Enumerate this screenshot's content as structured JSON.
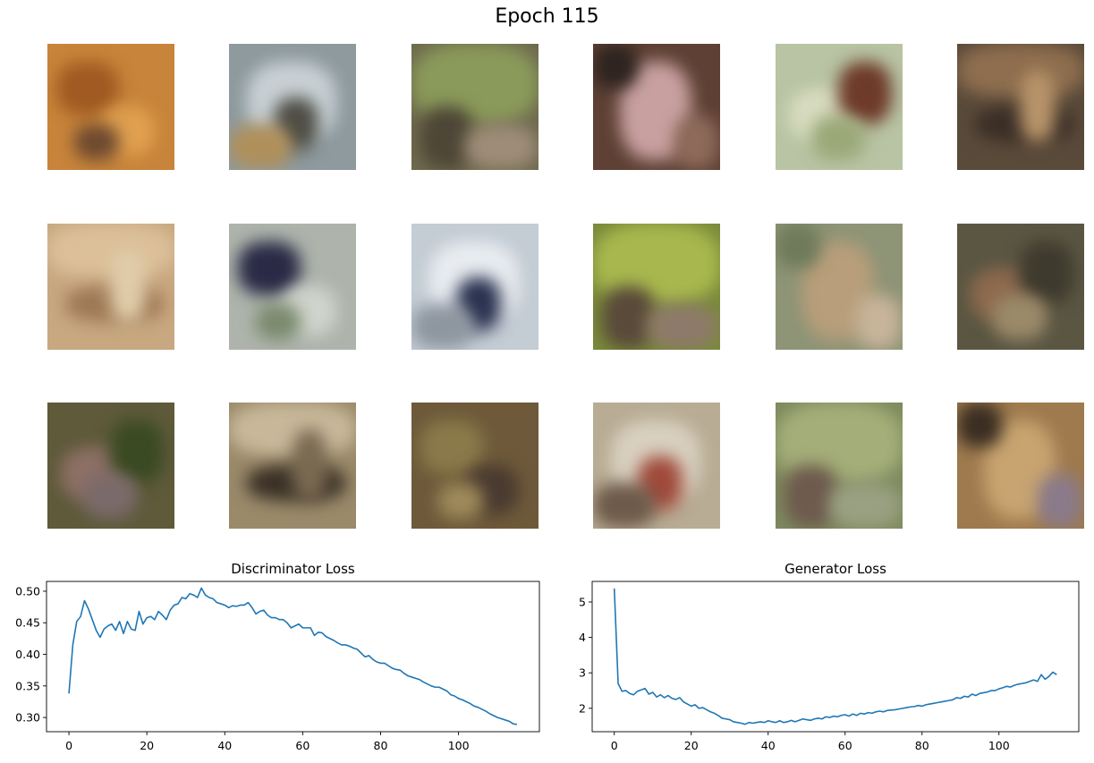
{
  "figure": {
    "title": "Epoch 115"
  },
  "image_grid": {
    "rows": 3,
    "cols": 6,
    "tiles": [
      {
        "base": "#c8843a",
        "blobs": [
          "#a05a22",
          "#e0a050",
          "#6e4a30"
        ]
      },
      {
        "base": "#8e9a9e",
        "blobs": [
          "#c8d0d4",
          "#4e4e46",
          "#b0905a"
        ]
      },
      {
        "base": "#6e6a4e",
        "blobs": [
          "#8a9a5a",
          "#4e4636",
          "#9e8c78"
        ]
      },
      {
        "base": "#5e4034",
        "blobs": [
          "#c8a0a0",
          "#2e2420",
          "#8e6a5a"
        ]
      },
      {
        "base": "#b8c4a4",
        "blobs": [
          "#d8dcc0",
          "#6e3a2a",
          "#9aa878"
        ]
      },
      {
        "base": "#5a4a3a",
        "blobs": [
          "#8e6e4e",
          "#3a2e26",
          "#b8946a"
        ]
      },
      {
        "base": "#c8a880",
        "blobs": [
          "#dcc09a",
          "#9e7856",
          "#e0ccaa"
        ]
      },
      {
        "base": "#aeb4ac",
        "blobs": [
          "#2a2a46",
          "#d0d4cc",
          "#7a8a6e"
        ]
      },
      {
        "base": "#c4ccd4",
        "blobs": [
          "#e8ecf0",
          "#2a3250",
          "#8e96a0"
        ]
      },
      {
        "base": "#7a8a3a",
        "blobs": [
          "#a8b84e",
          "#5a4a3a",
          "#8e7a6a"
        ]
      },
      {
        "base": "#8e9476",
        "blobs": [
          "#b89e7a",
          "#6e7a5a",
          "#c8b49a"
        ]
      },
      {
        "base": "#5a5642",
        "blobs": [
          "#8e6a4e",
          "#3e3a2e",
          "#9a8a6a"
        ]
      },
      {
        "base": "#5e5a3a",
        "blobs": [
          "#8e7066",
          "#3a4a22",
          "#7a6a6a"
        ]
      },
      {
        "base": "#9a8a6a",
        "blobs": [
          "#c8b89a",
          "#3a3026",
          "#7a6a52"
        ]
      },
      {
        "base": "#6e5a3a",
        "blobs": [
          "#8a7a4a",
          "#4a3a30",
          "#9e8a5a"
        ]
      },
      {
        "base": "#b8ac94",
        "blobs": [
          "#d8d0c0",
          "#a04a3a",
          "#6e5a4a"
        ]
      },
      {
        "base": "#7e8a5e",
        "blobs": [
          "#a4ae78",
          "#6e5a4e",
          "#9aa082"
        ]
      },
      {
        "base": "#9e7a4e",
        "blobs": [
          "#c8a470",
          "#3a2e22",
          "#8a7a8a"
        ]
      }
    ]
  },
  "style": {
    "line_color": "#1f77b4"
  },
  "chart_data": [
    {
      "type": "line",
      "title": "Discriminator Loss",
      "xlabel": "",
      "ylabel": "",
      "xlim": [
        -5.75,
        120.75
      ],
      "ylim": [
        0.2775,
        0.5155
      ],
      "xticks": [
        0,
        20,
        40,
        60,
        80,
        100
      ],
      "xtick_labels": [
        "0",
        "20",
        "40",
        "60",
        "80",
        "100"
      ],
      "yticks": [
        0.3,
        0.35,
        0.4,
        0.45,
        0.5
      ],
      "ytick_labels": [
        "0.30",
        "0.35",
        "0.40",
        "0.45",
        "0.50"
      ],
      "grid": false,
      "series": [
        {
          "values": [
            0.338,
            0.415,
            0.452,
            0.46,
            0.485,
            0.472,
            0.455,
            0.438,
            0.427,
            0.44,
            0.445,
            0.448,
            0.438,
            0.452,
            0.433,
            0.452,
            0.44,
            0.438,
            0.468,
            0.448,
            0.458,
            0.46,
            0.455,
            0.468,
            0.462,
            0.455,
            0.47,
            0.478,
            0.48,
            0.49,
            0.488,
            0.496,
            0.494,
            0.49,
            0.505,
            0.494,
            0.49,
            0.488,
            0.482,
            0.48,
            0.478,
            0.474,
            0.477,
            0.476,
            0.478,
            0.478,
            0.482,
            0.474,
            0.464,
            0.468,
            0.47,
            0.462,
            0.458,
            0.458,
            0.455,
            0.455,
            0.45,
            0.442,
            0.445,
            0.448,
            0.442,
            0.442,
            0.442,
            0.43,
            0.435,
            0.434,
            0.428,
            0.425,
            0.422,
            0.418,
            0.415,
            0.415,
            0.413,
            0.41,
            0.408,
            0.402,
            0.396,
            0.398,
            0.392,
            0.388,
            0.386,
            0.386,
            0.382,
            0.378,
            0.376,
            0.375,
            0.37,
            0.366,
            0.364,
            0.362,
            0.36,
            0.356,
            0.353,
            0.35,
            0.348,
            0.348,
            0.345,
            0.342,
            0.336,
            0.334,
            0.33,
            0.328,
            0.325,
            0.322,
            0.318,
            0.316,
            0.313,
            0.31,
            0.306,
            0.303,
            0.3,
            0.298,
            0.296,
            0.294,
            0.29,
            0.289
          ]
        }
      ]
    },
    {
      "type": "line",
      "title": "Generator Loss",
      "xlabel": "",
      "ylabel": "",
      "xlim": [
        -5.75,
        120.75
      ],
      "ylim": [
        1.34,
        5.58
      ],
      "xticks": [
        0,
        20,
        40,
        60,
        80,
        100
      ],
      "xtick_labels": [
        "0",
        "20",
        "40",
        "60",
        "80",
        "100"
      ],
      "yticks": [
        2,
        3,
        4,
        5
      ],
      "ytick_labels": [
        "2",
        "3",
        "4",
        "5"
      ],
      "grid": false,
      "series": [
        {
          "values": [
            5.38,
            2.7,
            2.48,
            2.5,
            2.42,
            2.38,
            2.48,
            2.52,
            2.56,
            2.4,
            2.45,
            2.32,
            2.38,
            2.3,
            2.36,
            2.28,
            2.25,
            2.3,
            2.18,
            2.12,
            2.06,
            2.1,
            2.0,
            2.02,
            1.96,
            1.9,
            1.86,
            1.8,
            1.72,
            1.7,
            1.68,
            1.62,
            1.6,
            1.58,
            1.55,
            1.6,
            1.58,
            1.6,
            1.62,
            1.6,
            1.65,
            1.62,
            1.6,
            1.65,
            1.6,
            1.62,
            1.66,
            1.62,
            1.66,
            1.7,
            1.68,
            1.66,
            1.7,
            1.72,
            1.7,
            1.76,
            1.74,
            1.78,
            1.76,
            1.8,
            1.82,
            1.78,
            1.84,
            1.8,
            1.86,
            1.84,
            1.88,
            1.86,
            1.9,
            1.92,
            1.9,
            1.94,
            1.95,
            1.96,
            1.98,
            2.0,
            2.02,
            2.04,
            2.05,
            2.08,
            2.06,
            2.1,
            2.12,
            2.14,
            2.16,
            2.18,
            2.2,
            2.22,
            2.24,
            2.3,
            2.28,
            2.34,
            2.32,
            2.4,
            2.36,
            2.42,
            2.44,
            2.46,
            2.5,
            2.5,
            2.55,
            2.58,
            2.62,
            2.6,
            2.65,
            2.68,
            2.7,
            2.72,
            2.76,
            2.8,
            2.76,
            2.95,
            2.82,
            2.9,
            3.02,
            2.95
          ]
        }
      ]
    }
  ]
}
